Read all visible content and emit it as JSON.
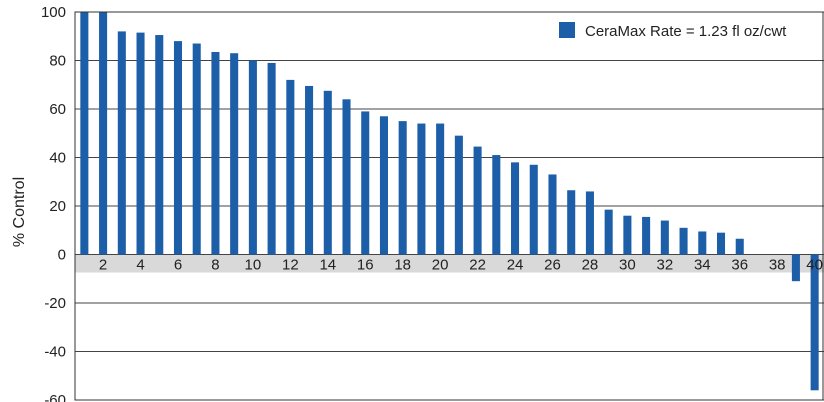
{
  "chart_data": {
    "type": "bar",
    "title": "",
    "xlabel": "",
    "ylabel": "% Control",
    "ylim": [
      -60,
      100
    ],
    "yticks": [
      100,
      80,
      60,
      40,
      20,
      0,
      -20,
      -40,
      -60
    ],
    "x_tick_labels": [
      "2",
      "4",
      "6",
      "8",
      "10",
      "12",
      "14",
      "16",
      "18",
      "20",
      "22",
      "24",
      "26",
      "28",
      "30",
      "32",
      "34",
      "36",
      "38",
      "40"
    ],
    "grid": "horizontal",
    "legend_position": "top-right",
    "bar_color": "#1c5fa8",
    "zero_band_color": "#d9d9d9",
    "series": [
      {
        "name": "CeraMax Rate = 1.23 fl oz/cwt",
        "x": [
          1,
          2,
          3,
          4,
          5,
          6,
          7,
          8,
          9,
          10,
          11,
          12,
          13,
          14,
          15,
          16,
          17,
          18,
          19,
          20,
          21,
          22,
          23,
          24,
          25,
          26,
          27,
          28,
          29,
          30,
          31,
          32,
          33,
          34,
          35,
          36,
          37,
          38,
          39,
          40
        ],
        "values": [
          100,
          100,
          92,
          91.5,
          90.5,
          88,
          87,
          83.5,
          83,
          80,
          79,
          72,
          69.5,
          67.5,
          64,
          59,
          57,
          55,
          54,
          54,
          49,
          44.5,
          41,
          38,
          37,
          33,
          26.5,
          26,
          18.5,
          16,
          15.5,
          14,
          11,
          9.5,
          9,
          6.5,
          0,
          0,
          -11,
          -56
        ]
      }
    ]
  }
}
